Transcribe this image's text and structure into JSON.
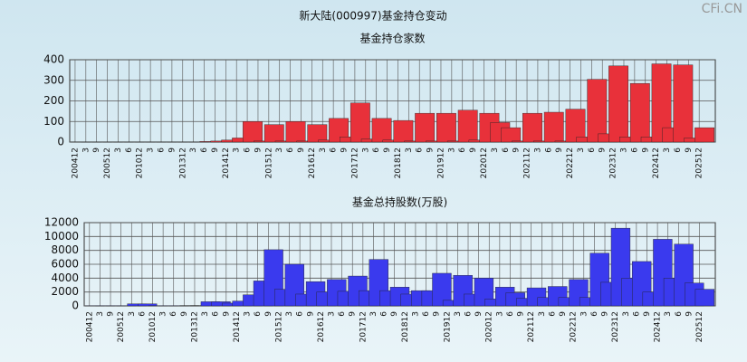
{
  "title": "新大陆(000997)基金持仓变动",
  "watermark": "CFi.CN",
  "chart_data": [
    {
      "type": "bar",
      "title": "基金持仓家数",
      "color": "#e8313a",
      "categories": [
        "200412",
        "3",
        "9",
        "200512",
        "3",
        "6",
        "201012",
        "3",
        "6",
        "9",
        "201312",
        "3",
        "6",
        "9",
        "201412",
        "3",
        "6",
        "9",
        "201512",
        "3",
        "6",
        "9",
        "201612",
        "3",
        "6",
        "9",
        "201712",
        "3",
        "6",
        "9",
        "201812",
        "3",
        "6",
        "9",
        "201912",
        "3",
        "6",
        "9",
        "202012",
        "3",
        "6",
        "9",
        "202112",
        "3",
        "6",
        "9",
        "202212",
        "3",
        "6",
        "9",
        "202312",
        "3",
        "6",
        "9",
        "202412",
        "3",
        "6",
        "9",
        "202512"
      ],
      "values": [
        1,
        1,
        1,
        1,
        1,
        1,
        1,
        1,
        1,
        1,
        1,
        1,
        3,
        5,
        10,
        20,
        100,
        5,
        85,
        5,
        100,
        5,
        85,
        10,
        115,
        25,
        190,
        15,
        115,
        10,
        105,
        5,
        140,
        5,
        140,
        5,
        155,
        10,
        140,
        95,
        70,
        5,
        140,
        5,
        145,
        5,
        160,
        25,
        305,
        40,
        370,
        25,
        285,
        25,
        380,
        70,
        375,
        20,
        70
      ],
      "ylim": [
        0,
        400
      ],
      "yticks": [
        0,
        100,
        200,
        300,
        400
      ],
      "grid": true
    },
    {
      "type": "bar",
      "title": "基金总持股数(万股)",
      "color": "#3a3aee",
      "categories": [
        "200412",
        "3",
        "9",
        "200512",
        "3",
        "6",
        "201012",
        "3",
        "6",
        "9",
        "201312",
        "3",
        "6",
        "9",
        "201412",
        "3",
        "6",
        "9",
        "201512",
        "3",
        "6",
        "9",
        "201612",
        "3",
        "6",
        "9",
        "201712",
        "3",
        "6",
        "9",
        "201812",
        "3",
        "6",
        "9",
        "201912",
        "3",
        "6",
        "9",
        "202012",
        "3",
        "6",
        "9",
        "202112",
        "3",
        "6",
        "9",
        "202212",
        "3",
        "6",
        "9",
        "202312",
        "3",
        "6",
        "9",
        "202412",
        "3",
        "6",
        "9",
        "202512"
      ],
      "values": [
        20,
        20,
        20,
        20,
        300,
        300,
        20,
        20,
        20,
        50,
        50,
        600,
        600,
        400,
        700,
        1600,
        3600,
        8100,
        2400,
        6000,
        1700,
        3500,
        2000,
        3800,
        2100,
        4300,
        2200,
        6700,
        2200,
        2700,
        1700,
        2200,
        2200,
        4700,
        800,
        4400,
        1700,
        4000,
        1000,
        2700,
        1900,
        1100,
        2600,
        1200,
        2800,
        1200,
        3800,
        1200,
        7600,
        3400,
        11200,
        4000,
        6400,
        2000,
        9600,
        4000,
        8900,
        3300,
        2400
      ],
      "ylim": [
        0,
        12000
      ],
      "yticks": [
        0,
        2000,
        4000,
        6000,
        8000,
        10000,
        12000
      ],
      "grid": true
    }
  ]
}
